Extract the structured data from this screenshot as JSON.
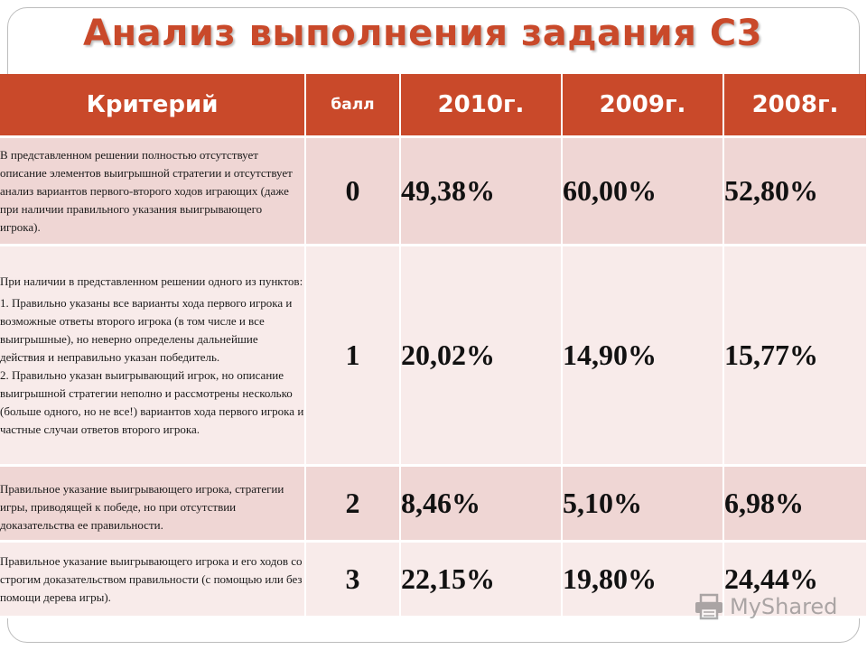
{
  "title": "Анализ выполнения задания С3",
  "table": {
    "headers": {
      "criterion": "Критерий",
      "score": "балл",
      "years": [
        "2010г.",
        "2009г.",
        "2008г."
      ]
    },
    "rows": [
      {
        "description": [
          "В представленном решении полностью отсутствует описание элементов выигрышной стратегии и отсутствует анализ вариантов первого-второго ходов играющих (даже при наличии правильного указания выигрывающего игрока)."
        ],
        "score": "0",
        "values": [
          "49,38%",
          "60,00%",
          "52,80%"
        ]
      },
      {
        "description": [
          "При наличии в представленном решении одного из пунктов:",
          "1. Правильно указаны все варианты хода первого игрока и возможные ответы второго игрока (в том числе и все выигрышные), но неверно определены дальнейшие действия и неправильно указан победитель.",
          "2. Правильно указан выигрывающий игрок, но описание выигрышной стратегии неполно и рассмотрены несколько (больше одного, но не все!) вариантов хода первого игрока и частные случаи ответов второго игрока."
        ],
        "score": "1",
        "values": [
          "20,02%",
          "14,90%",
          "15,77%"
        ]
      },
      {
        "description": [
          "Правильное указание выигрывающего игрока, стратегии игры, приводящей к победе, но при отсутствии доказательства ее правильности."
        ],
        "score": "2",
        "values": [
          "8,46%",
          "5,10%",
          "6,98%"
        ]
      },
      {
        "description": [
          "Правильное указание выигрывающего игрока и его ходов со строгим доказательством правильности (с помощью или без помощи дерева игры)."
        ],
        "score": "3",
        "values": [
          "22,15%",
          "19,80%",
          "24,44%"
        ]
      }
    ]
  },
  "watermark": {
    "text": "MyShared",
    "icon": "printer-icon"
  },
  "colors": {
    "header_bg": "#c9492a",
    "title": "#c9492a",
    "row_dark": "#efd6d4",
    "row_light": "#f8ebea"
  }
}
